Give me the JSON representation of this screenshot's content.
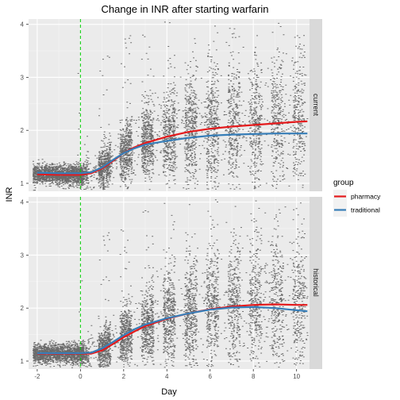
{
  "chart_data": {
    "type": "scatter",
    "title": "Change in INR after starting warfarin",
    "xlabel": "Day",
    "ylabel": "INR",
    "xlim": [
      -2.4,
      10.6
    ],
    "ylim": [
      0.85,
      4.1
    ],
    "x_ticks": [
      -2,
      0,
      2,
      4,
      6,
      8,
      10
    ],
    "y_ticks": [
      1,
      2,
      3,
      4
    ],
    "reference_line": {
      "x": 0,
      "style": "dashed",
      "color": "#00cc00"
    },
    "legend": {
      "title": "group",
      "placement": "right",
      "entries": [
        {
          "label": "pharmacy",
          "color": "#e41a1c"
        },
        {
          "label": "traditional",
          "color": "#377eb8"
        }
      ]
    },
    "panels": [
      {
        "facet": "current",
        "series": [
          {
            "group": "pharmacy",
            "color": "#e41a1c",
            "x": [
              -2,
              -1,
              0,
              0.5,
              1,
              1.5,
              2,
              2.5,
              3,
              4,
              5,
              6,
              7,
              8,
              9,
              10,
              10.5
            ],
            "y": [
              1.17,
              1.16,
              1.16,
              1.19,
              1.28,
              1.42,
              1.57,
              1.68,
              1.76,
              1.88,
              1.97,
              2.03,
              2.07,
              2.1,
              2.13,
              2.16,
              2.17
            ]
          },
          {
            "group": "traditional",
            "color": "#377eb8",
            "x": [
              -2,
              -1,
              0,
              0.5,
              1,
              1.5,
              2,
              2.5,
              3,
              4,
              5,
              6,
              7,
              8,
              9,
              10,
              10.5
            ],
            "y": [
              1.2,
              1.19,
              1.19,
              1.21,
              1.3,
              1.44,
              1.57,
              1.66,
              1.73,
              1.8,
              1.86,
              1.9,
              1.92,
              1.93,
              1.94,
              1.94,
              1.94
            ]
          }
        ]
      },
      {
        "facet": "historical",
        "series": [
          {
            "group": "pharmacy",
            "color": "#e41a1c",
            "x": [
              -2,
              -1,
              0,
              0.5,
              1,
              1.5,
              2,
              2.5,
              3,
              4,
              5,
              6,
              7,
              8,
              9,
              10,
              10.5
            ],
            "y": [
              1.14,
              1.14,
              1.14,
              1.14,
              1.2,
              1.32,
              1.45,
              1.56,
              1.66,
              1.8,
              1.9,
              1.98,
              2.03,
              2.06,
              2.07,
              2.06,
              2.06
            ]
          },
          {
            "group": "traditional",
            "color": "#377eb8",
            "x": [
              -2,
              -1,
              0,
              0.5,
              1,
              1.5,
              2,
              2.5,
              3,
              4,
              5,
              6,
              7,
              8,
              9,
              10,
              10.5
            ],
            "y": [
              1.15,
              1.15,
              1.15,
              1.16,
              1.24,
              1.36,
              1.49,
              1.6,
              1.69,
              1.81,
              1.9,
              1.97,
              2.01,
              2.02,
              2.0,
              1.96,
              1.94
            ]
          }
        ]
      }
    ]
  }
}
